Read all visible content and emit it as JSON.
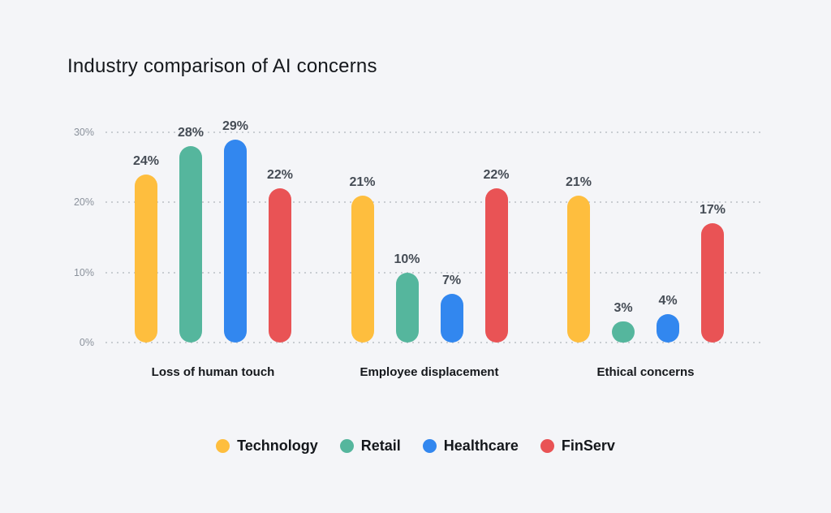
{
  "title": "Industry comparison of AI concerns",
  "chart_data": {
    "type": "bar",
    "title": "Industry comparison of AI concerns",
    "categories": [
      "Loss of human touch",
      "Employee displacement",
      "Ethical concerns"
    ],
    "series": [
      {
        "name": "Technology",
        "color": "#FEBE3E",
        "values": [
          24,
          21,
          21
        ]
      },
      {
        "name": "Retail",
        "color": "#55B69D",
        "values": [
          28,
          10,
          3
        ]
      },
      {
        "name": "Healthcare",
        "color": "#3287EF",
        "values": [
          29,
          7,
          4
        ]
      },
      {
        "name": "FinServ",
        "color": "#E95355",
        "values": [
          22,
          22,
          17
        ]
      }
    ],
    "value_suffix": "%",
    "y_ticks": [
      {
        "label": "30%",
        "value": 30
      },
      {
        "label": "20%",
        "value": 20
      },
      {
        "label": "10%",
        "value": 10
      },
      {
        "label": "0%",
        "value": 0
      }
    ],
    "ylim": [
      0,
      30
    ],
    "grid": "horizontal-dotted",
    "legend_position": "bottom",
    "data_labels_shown": true
  },
  "colors": {
    "background": "#F4F5F8",
    "title_text": "#15181C",
    "value_label": "#454C55",
    "axis_tick": "#8B929C",
    "gridline": "#C9CDD2",
    "category_label": "#15181C"
  }
}
